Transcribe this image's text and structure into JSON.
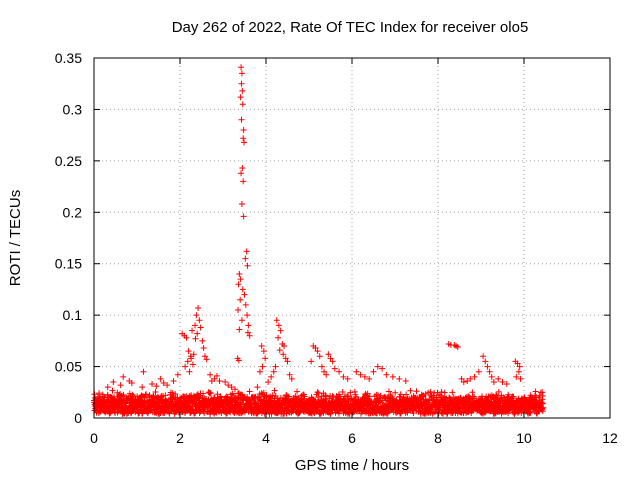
{
  "chart_data": {
    "type": "scatter",
    "title": "Day 262 of 2022, Rate Of TEC Index for receiver olo5",
    "xlabel": "GPS time / hours",
    "ylabel": "ROTI / TECUs",
    "xlim": [
      0,
      12
    ],
    "ylim": [
      0,
      0.35
    ],
    "xticks": [
      0,
      2,
      4,
      6,
      8,
      10,
      12
    ],
    "yticks": [
      0,
      0.05,
      0.1,
      0.15,
      0.2,
      0.25,
      0.3,
      0.35
    ],
    "xtick_labels": [
      "0",
      "2",
      "4",
      "6",
      "8",
      "10",
      "12"
    ],
    "ytick_labels": [
      "0",
      "0.05",
      "0.1",
      "0.15",
      "0.2",
      "0.25",
      "0.3",
      "0.35"
    ],
    "grid": true,
    "marker": "+",
    "marker_color": "#ff0000",
    "series": [
      {
        "values": [
          [
            3.42,
            0.341
          ],
          [
            3.44,
            0.335
          ],
          [
            3.43,
            0.325
          ],
          [
            3.45,
            0.318
          ],
          [
            3.41,
            0.312
          ],
          [
            3.46,
            0.305
          ],
          [
            3.43,
            0.29
          ],
          [
            3.48,
            0.28
          ],
          [
            3.47,
            0.272
          ],
          [
            3.49,
            0.268
          ],
          [
            3.45,
            0.243
          ],
          [
            3.42,
            0.238
          ],
          [
            3.47,
            0.23
          ],
          [
            3.44,
            0.208
          ],
          [
            3.48,
            0.196
          ],
          [
            3.55,
            0.162
          ],
          [
            3.52,
            0.155
          ],
          [
            3.57,
            0.148
          ],
          [
            3.38,
            0.14
          ],
          [
            3.41,
            0.135
          ],
          [
            3.36,
            0.13
          ],
          [
            3.46,
            0.125
          ],
          [
            3.5,
            0.12
          ],
          [
            3.4,
            0.115
          ],
          [
            3.53,
            0.11
          ],
          [
            3.35,
            0.105
          ],
          [
            3.56,
            0.1
          ],
          [
            3.44,
            0.095
          ],
          [
            3.59,
            0.09
          ],
          [
            3.38,
            0.086
          ],
          [
            3.58,
            0.083
          ],
          [
            3.62,
            0.08
          ],
          [
            3.34,
            0.058
          ],
          [
            3.37,
            0.056
          ],
          [
            2.05,
            0.082
          ],
          [
            2.1,
            0.08
          ],
          [
            2.15,
            0.078
          ],
          [
            2.2,
            0.065
          ],
          [
            2.25,
            0.06
          ],
          [
            2.3,
            0.052
          ],
          [
            2.22,
            0.045
          ],
          [
            2.12,
            0.05
          ],
          [
            2.18,
            0.055
          ],
          [
            2.26,
            0.058
          ],
          [
            2.32,
            0.062
          ],
          [
            2.38,
            0.1
          ],
          [
            2.42,
            0.107
          ],
          [
            2.45,
            0.095
          ],
          [
            2.48,
            0.088
          ],
          [
            2.4,
            0.082
          ],
          [
            2.52,
            0.075
          ],
          [
            2.55,
            0.068
          ],
          [
            2.58,
            0.06
          ],
          [
            2.62,
            0.057
          ],
          [
            2.35,
            0.09
          ],
          [
            2.28,
            0.085
          ],
          [
            2.36,
            0.077
          ],
          [
            2.7,
            0.042
          ],
          [
            2.74,
            0.036
          ],
          [
            2.8,
            0.038
          ],
          [
            2.86,
            0.041
          ],
          [
            2.92,
            0.036
          ],
          [
            3.05,
            0.035
          ],
          [
            3.12,
            0.032
          ],
          [
            3.2,
            0.03
          ],
          [
            3.28,
            0.028
          ],
          [
            4.25,
            0.095
          ],
          [
            4.3,
            0.09
          ],
          [
            4.34,
            0.085
          ],
          [
            4.28,
            0.078
          ],
          [
            4.38,
            0.072
          ],
          [
            4.42,
            0.07
          ],
          [
            4.32,
            0.066
          ],
          [
            4.4,
            0.062
          ],
          [
            4.46,
            0.058
          ],
          [
            4.5,
            0.055
          ],
          [
            4.22,
            0.05
          ],
          [
            4.18,
            0.045
          ],
          [
            4.12,
            0.04
          ],
          [
            4.05,
            0.035
          ],
          [
            3.95,
            0.065
          ],
          [
            3.9,
            0.07
          ],
          [
            3.98,
            0.058
          ],
          [
            3.92,
            0.05
          ],
          [
            3.86,
            0.045
          ],
          [
            3.8,
            0.03
          ],
          [
            4.55,
            0.042
          ],
          [
            4.6,
            0.038
          ],
          [
            5.1,
            0.07
          ],
          [
            5.15,
            0.068
          ],
          [
            5.2,
            0.065
          ],
          [
            5.25,
            0.06
          ],
          [
            5.05,
            0.055
          ],
          [
            5.3,
            0.05
          ],
          [
            5.35,
            0.045
          ],
          [
            5.4,
            0.042
          ],
          [
            5.45,
            0.062
          ],
          [
            5.5,
            0.058
          ],
          [
            5.55,
            0.055
          ],
          [
            5.6,
            0.048
          ],
          [
            5.7,
            0.045
          ],
          [
            5.8,
            0.04
          ],
          [
            5.9,
            0.038
          ],
          [
            6.1,
            0.045
          ],
          [
            6.2,
            0.042
          ],
          [
            6.3,
            0.04
          ],
          [
            6.4,
            0.038
          ],
          [
            6.5,
            0.045
          ],
          [
            6.6,
            0.05
          ],
          [
            6.7,
            0.048
          ],
          [
            6.8,
            0.042
          ],
          [
            6.95,
            0.04
          ],
          [
            7.1,
            0.038
          ],
          [
            7.25,
            0.036
          ],
          [
            8.25,
            0.072
          ],
          [
            8.3,
            0.071
          ],
          [
            8.38,
            0.071
          ],
          [
            8.42,
            0.07
          ],
          [
            8.46,
            0.069
          ],
          [
            8.55,
            0.038
          ],
          [
            8.6,
            0.035
          ],
          [
            8.68,
            0.036
          ],
          [
            8.75,
            0.038
          ],
          [
            8.85,
            0.04
          ],
          [
            8.95,
            0.045
          ],
          [
            9.05,
            0.06
          ],
          [
            9.1,
            0.055
          ],
          [
            9.15,
            0.05
          ],
          [
            9.2,
            0.045
          ],
          [
            9.25,
            0.04
          ],
          [
            9.3,
            0.035
          ],
          [
            9.4,
            0.038
          ],
          [
            9.5,
            0.035
          ],
          [
            9.6,
            0.033
          ],
          [
            9.8,
            0.055
          ],
          [
            9.85,
            0.053
          ],
          [
            9.9,
            0.05
          ],
          [
            9.88,
            0.045
          ],
          [
            9.82,
            0.04
          ],
          [
            9.92,
            0.038
          ],
          [
            0.32,
            0.03
          ],
          [
            0.62,
            0.032
          ],
          [
            0.68,
            0.04
          ],
          [
            0.88,
            0.034
          ],
          [
            1.15,
            0.045
          ],
          [
            1.35,
            0.033
          ],
          [
            1.55,
            0.038
          ],
          [
            1.7,
            0.032
          ],
          [
            1.85,
            0.036
          ],
          [
            1.95,
            0.042
          ],
          [
            1.12,
            0.03
          ],
          [
            0.45,
            0.035
          ],
          [
            0.82,
            0.036
          ],
          [
            1.45,
            0.031
          ],
          [
            1.62,
            0.034
          ]
        ]
      }
    ],
    "baseline_band": {
      "x_start": 0.0,
      "x_end": 10.45,
      "y_center": 0.0125,
      "y_spread": 0.0105,
      "y_cap": 0.031
    }
  }
}
